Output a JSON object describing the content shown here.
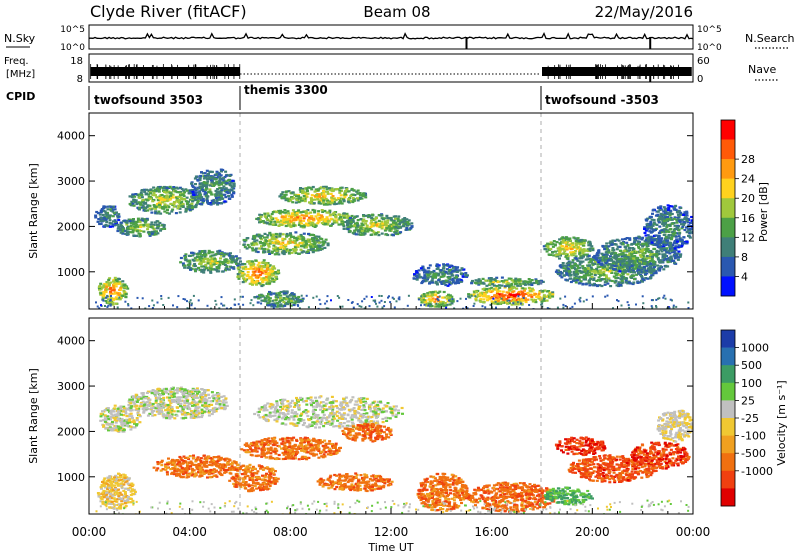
{
  "header": {
    "station": "Clyde River (fitACF)",
    "beam": "Beam 08",
    "date": "22/May/2016"
  },
  "top_panels": {
    "nsky_label": "N.Sky",
    "nsearch_label": "N.Search",
    "nsky_ticks": [
      "10^5",
      "10^0"
    ],
    "nsearch_ticks": [
      "10^5",
      "10^0"
    ],
    "freq_label_1": "Freq.",
    "freq_label_2": "[MHz]",
    "freq_ticks": [
      "18",
      "8"
    ],
    "nave_label": "Nave",
    "nave_ticks": [
      "60",
      "0"
    ],
    "cpid_label": "CPID",
    "cpid_segments": [
      {
        "label": "twofsound 3503",
        "start_hour": 0,
        "end_hour": 6
      },
      {
        "label": "themis 3300",
        "start_hour": 6,
        "end_hour": 18
      },
      {
        "label": "twofsound -3503",
        "start_hour": 18,
        "end_hour": 24
      }
    ]
  },
  "chart_data": [
    {
      "type": "heatmap",
      "name": "power",
      "ylabel": "Slant Range [km]",
      "xlabel": "",
      "xlim": [
        0,
        24
      ],
      "ylim": [
        180,
        4500
      ],
      "yticks": [
        "1000",
        "2000",
        "3000",
        "4000"
      ],
      "colorbar_label": "Power [dB]",
      "colorbar_ticks": [
        "4",
        "8",
        "12",
        "16",
        "20",
        "24",
        "28"
      ],
      "colorbar_colors": [
        "#0010ff",
        "#2a58b0",
        "#3f7f78",
        "#4ca046",
        "#a0c83c",
        "#ffd21e",
        "#ff9a10",
        "#ff5a08",
        "#ff0000"
      ],
      "blobs": [
        {
          "x": [
            0.3,
            1.5
          ],
          "y": [
            300,
            900
          ],
          "level": 0.85
        },
        {
          "x": [
            0.2,
            1.2
          ],
          "y": [
            2000,
            2500
          ],
          "level": 0.35
        },
        {
          "x": [
            1.5,
            4.5
          ],
          "y": [
            2300,
            2900
          ],
          "level": 0.6
        },
        {
          "x": [
            1.0,
            3.0
          ],
          "y": [
            1800,
            2200
          ],
          "level": 0.55
        },
        {
          "x": [
            4.0,
            5.8
          ],
          "y": [
            2500,
            3300
          ],
          "level": 0.4
        },
        {
          "x": [
            3.5,
            6.0
          ],
          "y": [
            1000,
            1500
          ],
          "level": 0.55
        },
        {
          "x": [
            5.8,
            7.5
          ],
          "y": [
            700,
            1300
          ],
          "level": 0.85
        },
        {
          "x": [
            6.0,
            9.5
          ],
          "y": [
            1400,
            1900
          ],
          "level": 0.65
        },
        {
          "x": [
            6.5,
            10.5
          ],
          "y": [
            2000,
            2400
          ],
          "level": 0.8
        },
        {
          "x": [
            7.5,
            11.0
          ],
          "y": [
            2500,
            2900
          ],
          "level": 0.7
        },
        {
          "x": [
            10.0,
            12.8
          ],
          "y": [
            1800,
            2300
          ],
          "level": 0.6
        },
        {
          "x": [
            6.5,
            8.5
          ],
          "y": [
            250,
            600
          ],
          "level": 0.5
        },
        {
          "x": [
            12.8,
            15.0
          ],
          "y": [
            700,
            1200
          ],
          "level": 0.35
        },
        {
          "x": [
            13.0,
            14.5
          ],
          "y": [
            250,
            600
          ],
          "level": 0.8
        },
        {
          "x": [
            15.0,
            18.5
          ],
          "y": [
            300,
            700
          ],
          "level": 0.95
        },
        {
          "x": [
            15.0,
            18.0
          ],
          "y": [
            700,
            900
          ],
          "level": 0.55
        },
        {
          "x": [
            18.0,
            20.0
          ],
          "y": [
            1300,
            1800
          ],
          "level": 0.7
        },
        {
          "x": [
            18.5,
            22.5
          ],
          "y": [
            700,
            1400
          ],
          "level": 0.5
        },
        {
          "x": [
            20.0,
            23.5
          ],
          "y": [
            1000,
            1800
          ],
          "level": 0.45
        },
        {
          "x": [
            22.0,
            24.0
          ],
          "y": [
            1500,
            2500
          ],
          "level": 0.35
        }
      ]
    },
    {
      "type": "heatmap",
      "name": "velocity",
      "ylabel": "Slant Range [km]",
      "xlabel": "Time UT",
      "xlim": [
        0,
        24
      ],
      "ylim": [
        180,
        4500
      ],
      "xticks": [
        "00:00",
        "04:00",
        "08:00",
        "12:00",
        "16:00",
        "20:00",
        "00:00"
      ],
      "yticks": [
        "1000",
        "2000",
        "3000",
        "4000"
      ],
      "colorbar_label": "Velocity [m s⁻¹]",
      "colorbar_ticks": [
        "1000",
        "500",
        "100",
        "25",
        "-25",
        "-100",
        "-500",
        "-1000"
      ],
      "colorbar_colors": [
        "#1c3ca8",
        "#2870b0",
        "#3c9c64",
        "#64c83c",
        "#c0c0c0",
        "#f0c832",
        "#f0a020",
        "#f07010",
        "#f04010",
        "#e00000"
      ],
      "blobs": [
        {
          "x": [
            0.3,
            2.0
          ],
          "y": [
            2000,
            2600
          ],
          "level": 0.45
        },
        {
          "x": [
            1.5,
            5.5
          ],
          "y": [
            2300,
            3000
          ],
          "level": 0.45
        },
        {
          "x": [
            0.3,
            1.8
          ],
          "y": [
            300,
            1100
          ],
          "level": 0.55
        },
        {
          "x": [
            2.5,
            6.0
          ],
          "y": [
            1000,
            1500
          ],
          "level": 0.75
        },
        {
          "x": [
            5.5,
            7.5
          ],
          "y": [
            700,
            1300
          ],
          "level": 0.75
        },
        {
          "x": [
            6.0,
            10.0
          ],
          "y": [
            1400,
            1900
          ],
          "level": 0.75
        },
        {
          "x": [
            6.5,
            12.5
          ],
          "y": [
            2100,
            2800
          ],
          "level": 0.45
        },
        {
          "x": [
            10.0,
            12.0
          ],
          "y": [
            1800,
            2200
          ],
          "level": 0.78
        },
        {
          "x": [
            9.0,
            12.0
          ],
          "y": [
            700,
            1100
          ],
          "level": 0.75
        },
        {
          "x": [
            13.0,
            15.0
          ],
          "y": [
            250,
            1100
          ],
          "level": 0.75
        },
        {
          "x": [
            15.0,
            18.5
          ],
          "y": [
            250,
            900
          ],
          "level": 0.78
        },
        {
          "x": [
            18.5,
            20.5
          ],
          "y": [
            1500,
            1900
          ],
          "level": 0.88
        },
        {
          "x": [
            19.0,
            22.5
          ],
          "y": [
            900,
            1500
          ],
          "level": 0.82
        },
        {
          "x": [
            21.5,
            23.8
          ],
          "y": [
            1200,
            1800
          ],
          "level": 0.85
        },
        {
          "x": [
            22.5,
            24.0
          ],
          "y": [
            1800,
            2500
          ],
          "level": 0.5
        },
        {
          "x": [
            18.0,
            20.0
          ],
          "y": [
            400,
            800
          ],
          "level": 0.3
        }
      ]
    }
  ]
}
